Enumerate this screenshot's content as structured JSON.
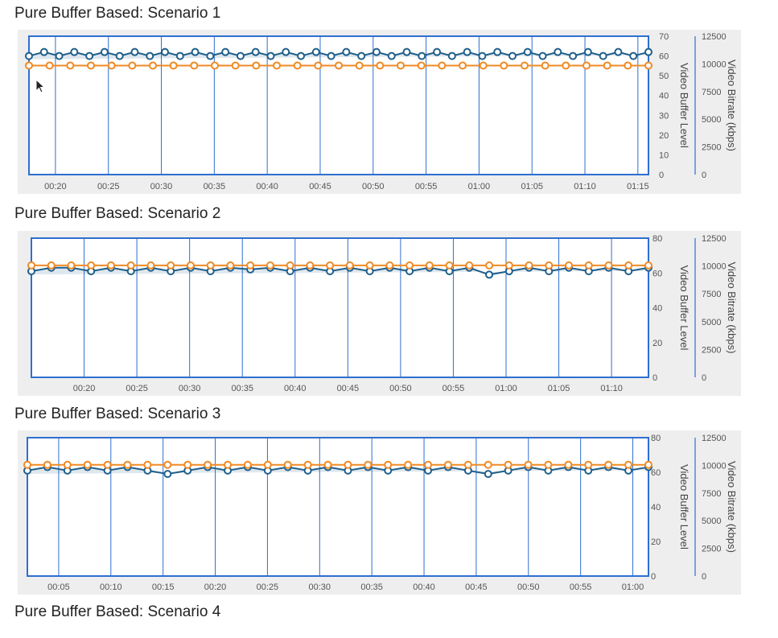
{
  "chart_data": [
    {
      "type": "line",
      "title": "Pure Buffer Based: Scenario 1",
      "x_ticks": [
        "00:20",
        "00:25",
        "00:30",
        "00:35",
        "00:40",
        "00:45",
        "00:50",
        "00:55",
        "01:00",
        "01:05",
        "01:10",
        "01:15"
      ],
      "y_left": {
        "label": "Video Buffer Level",
        "ticks": [
          "0",
          "10",
          "20",
          "30",
          "40",
          "50",
          "60",
          "70"
        ],
        "ylim": [
          0,
          70
        ]
      },
      "y_right": {
        "label": "Video Bitrate (kbps)",
        "ticks": [
          "0",
          "2500",
          "5000",
          "7500",
          "10000",
          "12500"
        ],
        "ylim": [
          0,
          12500
        ]
      },
      "x_range": [
        "00:17.5",
        "01:16"
      ],
      "grid": "vertical",
      "series": [
        {
          "axis": "left",
          "color": "#1f5f8b",
          "values": [
            60,
            62,
            60,
            62,
            60,
            62,
            60,
            62,
            60,
            62,
            60,
            62,
            60,
            62,
            60,
            62,
            60,
            62,
            60,
            62,
            60,
            62,
            60,
            62,
            60,
            62,
            60,
            62,
            60,
            62,
            60,
            62,
            60,
            62,
            60,
            62,
            60,
            62,
            60,
            62,
            60,
            62
          ]
        },
        {
          "axis": "right",
          "color": "#f08a24",
          "values": [
            9850,
            9850,
            9850,
            9850,
            9850,
            9850,
            9850,
            9850,
            9850,
            9850,
            9850,
            9850,
            9850,
            9850,
            9850,
            9850,
            9850,
            9850,
            9850,
            9850,
            9850,
            9850,
            9850,
            9850,
            9850,
            9850,
            9850,
            9850,
            9850,
            9850,
            9850
          ]
        }
      ]
    },
    {
      "type": "line",
      "title": "Pure Buffer Based: Scenario 2",
      "x_ticks": [
        "00:20",
        "00:25",
        "00:30",
        "00:35",
        "00:40",
        "00:45",
        "00:50",
        "00:55",
        "01:00",
        "01:05",
        "01:10"
      ],
      "y_left": {
        "label": "Video Buffer Level",
        "ticks": [
          "0",
          "20",
          "40",
          "60",
          "80"
        ],
        "ylim": [
          0,
          80
        ]
      },
      "y_right": {
        "label": "Video Bitrate (kbps)",
        "ticks": [
          "0",
          "2500",
          "5000",
          "7500",
          "10000",
          "12500"
        ],
        "ylim": [
          0,
          12500
        ]
      },
      "x_range": [
        "00:15",
        "01:13.5"
      ],
      "grid": "vertical",
      "series": [
        {
          "axis": "left",
          "color": "#1f5f8b",
          "values": [
            61,
            63,
            63,
            61,
            63,
            61,
            63,
            61,
            63,
            61,
            63,
            62,
            63,
            61,
            63,
            61,
            63,
            61,
            63,
            61,
            63,
            61,
            63,
            59,
            61,
            63,
            61,
            63,
            61,
            63,
            61,
            63
          ]
        },
        {
          "axis": "right",
          "color": "#f08a24",
          "values": [
            10050,
            10050,
            10050,
            10050,
            10050,
            10050,
            10050,
            10050,
            10050,
            10050,
            10050,
            10050,
            10050,
            10050,
            10050,
            10050,
            10050,
            10050,
            10050,
            10050,
            10050,
            10050,
            10050,
            10050,
            10050,
            10050,
            10050,
            10050,
            10050,
            10050,
            10050,
            10050
          ]
        }
      ]
    },
    {
      "type": "line",
      "title": "Pure Buffer Based: Scenario 3",
      "x_ticks": [
        "00:05",
        "00:10",
        "00:15",
        "00:20",
        "00:25",
        "00:30",
        "00:35",
        "00:40",
        "00:45",
        "00:50",
        "00:55",
        "01:00"
      ],
      "y_left": {
        "label": "Video Buffer Level",
        "ticks": [
          "0",
          "20",
          "40",
          "60",
          "80"
        ],
        "ylim": [
          0,
          80
        ]
      },
      "y_right": {
        "label": "Video Bitrate (kbps)",
        "ticks": [
          "0",
          "2500",
          "5000",
          "7500",
          "10000",
          "12500"
        ],
        "ylim": [
          0,
          12500
        ]
      },
      "x_range": [
        "00:02",
        "01:01.5"
      ],
      "grid": "vertical",
      "series": [
        {
          "axis": "left",
          "color": "#1f5f8b",
          "values": [
            61,
            63,
            61,
            63,
            61,
            63,
            61,
            59,
            61,
            63,
            61,
            63,
            61,
            63,
            61,
            63,
            61,
            63,
            61,
            63,
            61,
            63,
            61,
            59,
            61,
            63,
            61,
            63,
            61,
            63,
            61,
            63
          ]
        },
        {
          "axis": "right",
          "color": "#f08a24",
          "values": [
            10050,
            10050,
            10050,
            10050,
            10050,
            10050,
            10050,
            10050,
            10050,
            10050,
            10050,
            10050,
            10050,
            10050,
            10050,
            10050,
            10050,
            10050,
            10050,
            10050,
            10050,
            10050,
            10050,
            10050,
            10050,
            10050,
            10050,
            10050,
            10050,
            10050,
            10050,
            10050
          ]
        }
      ]
    }
  ],
  "trailing_title": "Pure Buffer Based: Scenario 4"
}
